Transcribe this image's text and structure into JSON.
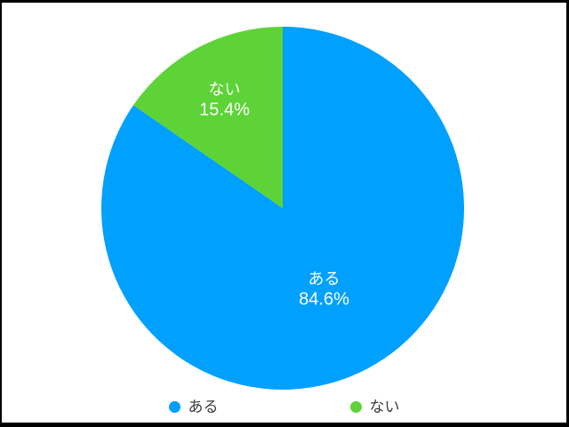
{
  "page": {
    "frame_color": "#000000",
    "canvas_color": "#ffffff"
  },
  "chart_data": {
    "type": "pie",
    "title": "",
    "categories": [
      "ある",
      "ない"
    ],
    "values": [
      84.6,
      15.4
    ],
    "unit": "%",
    "colors": [
      "#00a0ff",
      "#5dd337"
    ],
    "start_angle_deg": -90,
    "direction": "clockwise",
    "slice_label_color": "#ffffff",
    "label_radius": [
      0.49,
      0.69
    ],
    "legend": {
      "position": "bottom",
      "text_color": "#3c3c3c",
      "items": [
        {
          "label": "ある",
          "color": "#00a0ff"
        },
        {
          "label": "ない",
          "color": "#5dd337"
        }
      ]
    }
  }
}
